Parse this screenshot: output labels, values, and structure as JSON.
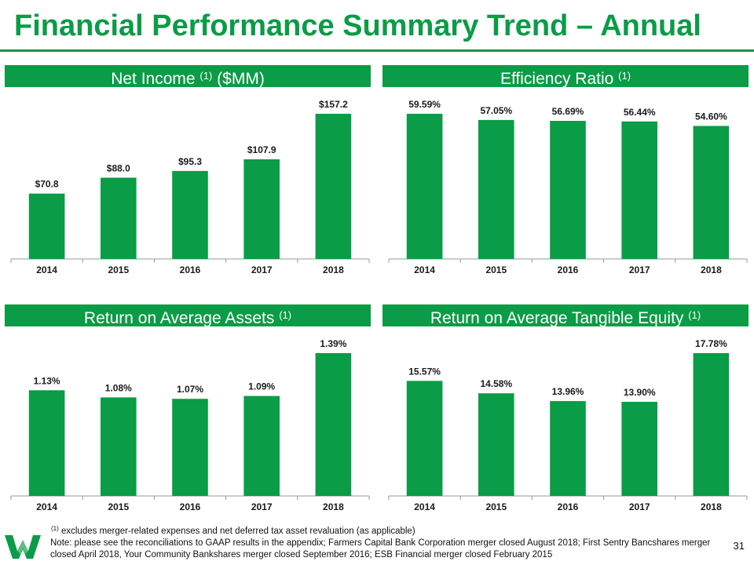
{
  "slide": {
    "title": "Financial Performance Summary Trend – Annual",
    "page_number": "31"
  },
  "panels": [
    {
      "title": "Net Income",
      "superscript": "(1)",
      "title_suffix": "($MM)"
    },
    {
      "title": "Efficiency Ratio",
      "superscript": "(1)",
      "title_suffix": ""
    },
    {
      "title": "Return on Average Assets",
      "superscript": "(1)",
      "title_suffix": ""
    },
    {
      "title": "Return on Average Tangible Equity",
      "superscript": "(1)",
      "title_suffix": ""
    }
  ],
  "chart_data": [
    {
      "type": "bar",
      "title": "Net Income (1) ($MM)",
      "categories": [
        "2014",
        "2015",
        "2016",
        "2017",
        "2018"
      ],
      "values": [
        70.8,
        88.0,
        95.3,
        107.9,
        157.2
      ],
      "labels": [
        "$70.8",
        "$88.0",
        "$95.3",
        "$107.9",
        "$157.2"
      ],
      "ylim": [
        0,
        157.2
      ],
      "color": "#0a9c46"
    },
    {
      "type": "bar",
      "title": "Efficiency Ratio (1)",
      "categories": [
        "2014",
        "2015",
        "2016",
        "2017",
        "2018"
      ],
      "values": [
        59.59,
        57.05,
        56.69,
        56.44,
        54.6
      ],
      "labels": [
        "59.59%",
        "57.05%",
        "56.69%",
        "56.44%",
        "54.60%"
      ],
      "ylim": [
        0,
        59.59
      ],
      "color": "#0a9c46"
    },
    {
      "type": "bar",
      "title": "Return on Average Assets (1)",
      "categories": [
        "2014",
        "2015",
        "2016",
        "2017",
        "2018"
      ],
      "values": [
        1.13,
        1.08,
        1.07,
        1.09,
        1.39
      ],
      "labels": [
        "1.13%",
        "1.08%",
        "1.07%",
        "1.09%",
        "1.39%"
      ],
      "ylim": [
        0.39,
        1.39
      ],
      "color": "#0a9c46"
    },
    {
      "type": "bar",
      "title": "Return on Average Tangible Equity (1)",
      "categories": [
        "2014",
        "2015",
        "2016",
        "2017",
        "2018"
      ],
      "values": [
        15.57,
        14.58,
        13.96,
        13.9,
        17.78
      ],
      "labels": [
        "15.57%",
        "14.58%",
        "13.96%",
        "13.90%",
        "17.78%"
      ],
      "ylim": [
        6.4,
        17.78
      ],
      "color": "#0a9c46"
    }
  ],
  "footnotes": {
    "superscript": "(1)",
    "line1": "excludes merger-related  expenses and net deferred  tax asset revaluation  (as applicable)",
    "note": "Note: please see the reconciliations to GAAP results in the appendix; Farmers Capital Bank Corporation  merger closed August 2018; First Sentry Bancshares merger closed April 2018, Your Community Bankshares merger closed September 2016; ESB Financial merger closed February 2015"
  },
  "logo": {
    "icon": "wesbanco-w-logo-icon",
    "color": "#0a9c46"
  }
}
